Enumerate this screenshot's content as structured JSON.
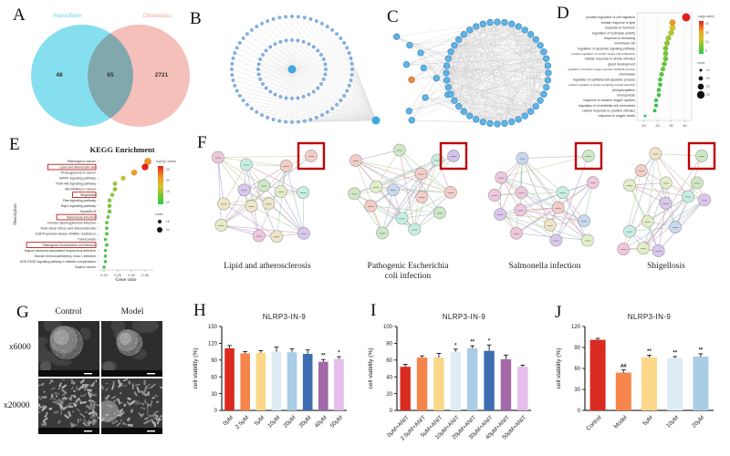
{
  "figure": {
    "panels": {
      "a": "A",
      "b": "B",
      "c": "C",
      "d": "D",
      "e": "E",
      "f": "F",
      "g": "G",
      "h": "H",
      "i": "I",
      "j": "J"
    }
  },
  "panelA": {
    "left_label": "Paeoniflorin",
    "right_label": "Cholestasis",
    "left_count": "48",
    "overlap_count": "65",
    "right_count": "2721",
    "left_color": "#86dfee",
    "right_color": "#f5c0ba",
    "left_label_color": "#6ad4e4",
    "right_label_color": "#f0a49e"
  },
  "panelB": {
    "outer_node_count": 60,
    "inner_node_count": 36,
    "node_color": "#82b4e8",
    "node_stroke": "#4d7fc0",
    "hub_color": "#3fa8dc",
    "edge_color": "#dedede"
  },
  "panelC": {
    "circle_node_count": 44,
    "left_node_count": 11,
    "node_color": "#5fb4e6",
    "node_stroke": "#3f88bc",
    "highlight_node_color": "#f0883c",
    "highlight_node_stroke": "#c86a28",
    "edge_color": "#c9c9c9"
  },
  "panelF": {
    "highlight_box_color": "#bf0000",
    "node_colors": [
      "#cfe8c5",
      "#f3cdc8",
      "#c8d8ee",
      "#dac8ee",
      "#eee6c8",
      "#c8eee4",
      "#eec8dd",
      "#e3eec8"
    ],
    "edge_colors": [
      "#a9a2d0",
      "#d0a2a2",
      "#a2d0b0",
      "#cfc8a0",
      "#a0bcd0",
      "#d0a0c4",
      "#b4d0a0"
    ],
    "networks": [
      {
        "name": "Lipid and atherosclerosis",
        "seed": 11,
        "highlight_node_color": "#f3cdc8"
      },
      {
        "name": "Pathogenic Escherichia\ncoli infection",
        "seed": 22,
        "highlight_node_color": "#cfc2ec"
      },
      {
        "name": "Salmonella infection",
        "seed": 33,
        "highlight_node_color": "#cde8c5"
      },
      {
        "name": "Shigellosis",
        "seed": 44,
        "highlight_node_color": "#cde8c5"
      }
    ]
  },
  "panelG": {
    "col_headers": [
      "Control",
      "Model"
    ],
    "row_labels": [
      "x6000",
      "x20000"
    ]
  },
  "chart_data": [
    {
      "id": "D",
      "type": "scatter",
      "panel": "D",
      "title": "",
      "terms": [
        "positive regulation of cell migration",
        "cellular response to lipid",
        "response to hormone",
        "regulation of hydrolase activity",
        "response to wounding",
        "membrane raft",
        "regulation of apoptotic signaling pathway",
        "positive regulation of smooth muscle cell proliferation",
        "cellular response to abiotic stimulus",
        "gland development",
        "regulation of reactive oxygen species metabolic process",
        "chemotaxis",
        "regulation of epithelial cell apoptotic process",
        "positive regulation of protein-containing complex assembly",
        "phosphorylation",
        "hemopoiesis",
        "response to reactive oxygen species",
        "regulation of endothelial cell chemotaxis",
        "cellular response to cytokine stimulus",
        "response to oxygen levels"
      ],
      "values": [
        41,
        31,
        31,
        30,
        28,
        27,
        26,
        26,
        26,
        25,
        24,
        23,
        22,
        22,
        21,
        21,
        19,
        19,
        18,
        11
      ],
      "counts": [
        25,
        18,
        17,
        16,
        15,
        15,
        14,
        14,
        14,
        13,
        12,
        12,
        11,
        11,
        10,
        10,
        9,
        9,
        8,
        5
      ],
      "point_colors": [
        "#e51f1f",
        "#f09a28",
        "#d0c42a",
        "#b8c62c",
        "#9cc72e",
        "#8cc72e",
        "#7cc730",
        "#74c732",
        "#6cc734",
        "#64c836",
        "#5cc838",
        "#54c83a",
        "#4cc83c",
        "#46c93e",
        "#40c940",
        "#3ac942",
        "#34ca44",
        "#30ca46",
        "#2cca48",
        "#28cb4a"
      ],
      "xticks": [
        10,
        20,
        30,
        40
      ],
      "xlim": [
        5,
        45
      ],
      "legend_color_title": "-log(p-value)",
      "legend_color_ticks": [
        "20",
        "15",
        "10",
        "5"
      ],
      "legend_size_title": "count",
      "legend_sizes": [
        10,
        15,
        20,
        25
      ]
    },
    {
      "id": "E",
      "type": "scatter",
      "panel": "E",
      "title": "KEGG Enrichment",
      "xlabel": "Gene ratio",
      "ylabel": "Description",
      "terms": [
        "Pathways in cancer",
        "Lipid and atherosclerosis",
        "Proteoglycans in cancer",
        "MAPK signaling pathway",
        "PI3K-Akt signaling pathway",
        "MicroRNAs in cancer",
        "Shigellosis",
        "Ras signaling pathway",
        "Rap1 signaling pathway",
        "Hepatitis B",
        "Salmonella infection",
        "Human cytomegalovirus infection",
        "Fluid shear stress and atherosclerosis",
        "EGFR tyrosine kinase inhibitor resistance",
        "Tuberculosis",
        "Pathogenic Escherichia coli infection",
        "Kaposi sarcoma-associated herpesvirus infection",
        "Human immunodeficiency virus 1 infection",
        "AGE-RAGE signaling pathway in diabetic complications",
        "Gastric cancer"
      ],
      "boxed_terms": [
        "Lipid and atherosclerosis",
        "Shigellosis",
        "Salmonella infection",
        "Pathogenic Escherichia coli infection"
      ],
      "boxed_indices": [
        1,
        6,
        10,
        15
      ],
      "values": [
        0.36,
        0.35,
        0.31,
        0.27,
        0.24,
        0.24,
        0.23,
        0.22,
        0.22,
        0.22,
        0.215,
        0.21,
        0.21,
        0.21,
        0.205,
        0.21,
        0.205,
        0.205,
        0.205,
        0.2
      ],
      "counts": [
        20,
        19,
        17,
        14,
        13,
        13,
        12,
        12,
        12,
        12,
        11,
        11,
        11,
        11,
        10,
        11,
        10,
        10,
        10,
        10
      ],
      "point_colors": [
        "#f09228",
        "#e51f1f",
        "#ef9f28",
        "#c9c42a",
        "#a2c92c",
        "#96c92e",
        "#8aca30",
        "#80ca32",
        "#76ca34",
        "#6eca36",
        "#66cb38",
        "#5ecb3a",
        "#58cb3c",
        "#50cb3e",
        "#4acc40",
        "#44cc42",
        "#3ecc44",
        "#38cc46",
        "#32cd48",
        "#2ccd4a"
      ],
      "xticks": [
        "0.20",
        "0.25",
        "0.30",
        "0.35"
      ],
      "xlim": [
        0.18,
        0.38
      ],
      "legend_color_title": "-log10(p-value)",
      "legend_color_ticks": [
        "25",
        "20",
        "15",
        "10"
      ],
      "legend_size_title": "count",
      "legend_sizes": [
        15,
        20
      ]
    },
    {
      "id": "H",
      "type": "bar",
      "panel": "H",
      "title": "NLRP3-IN-9",
      "ylabel": "cell viability (%)",
      "categories": [
        "0μM",
        "2.5μM",
        "5μM",
        "10μM",
        "20μM",
        "30μM",
        "40μM",
        "50μM"
      ],
      "values": [
        111,
        102,
        103,
        105,
        104,
        101,
        87,
        92
      ],
      "errors": [
        5,
        3,
        4,
        8,
        6,
        7,
        4,
        4
      ],
      "sig": [
        "",
        "",
        "",
        "",
        "",
        "",
        "**",
        "*"
      ],
      "ylim": [
        0,
        150
      ],
      "yticks": [
        0,
        30,
        60,
        90,
        120,
        150
      ],
      "bar_colors": [
        "#d92b1f",
        "#f5854a",
        "#fbd78a",
        "#dfecf3",
        "#a9cde5",
        "#3d6cb0",
        "#a268a8",
        "#e5bdea"
      ]
    },
    {
      "id": "I",
      "type": "bar",
      "panel": "I",
      "title": "NLRP3-IN-9",
      "ylabel": "cell viability (%)",
      "categories": [
        "0μM+ANIT",
        "2.5μM+ANIT",
        "5μM+ANIT",
        "10μM+ANIT",
        "20μM+ANIT",
        "30μM+ANIT",
        "40μM+ANIT",
        "50μM+ANIT"
      ],
      "values": [
        52,
        63,
        63,
        70,
        74,
        71,
        61,
        52
      ],
      "errors": [
        3,
        2,
        5,
        3,
        3,
        7,
        5,
        2
      ],
      "sig": [
        "",
        "",
        "",
        "*",
        "**",
        "*",
        "",
        ""
      ],
      "ylim": [
        0,
        100
      ],
      "yticks": [
        0,
        20,
        40,
        60,
        80,
        100
      ],
      "bar_colors": [
        "#d92b1f",
        "#f5854a",
        "#fbd78a",
        "#dfecf3",
        "#a9cde5",
        "#3d6cb0",
        "#a268a8",
        "#e5bdea"
      ]
    },
    {
      "id": "J",
      "type": "bar",
      "panel": "J",
      "title": "NLRP3-IN-9",
      "ylabel": "cell viability (%)",
      "categories": [
        "Control",
        "Model",
        "5μM",
        "10μM",
        "20μM"
      ],
      "values": [
        101,
        54,
        76,
        75,
        77
      ],
      "errors": [
        2,
        4,
        3,
        2,
        4
      ],
      "sig": [
        "",
        "##",
        "**",
        "**",
        "**"
      ],
      "ylim": [
        0,
        120
      ],
      "yticks": [
        0,
        30,
        60,
        90,
        120
      ],
      "bar_colors": [
        "#d92b1f",
        "#f5854a",
        "#fbd78a",
        "#dfecf3",
        "#a9cde5"
      ]
    }
  ]
}
